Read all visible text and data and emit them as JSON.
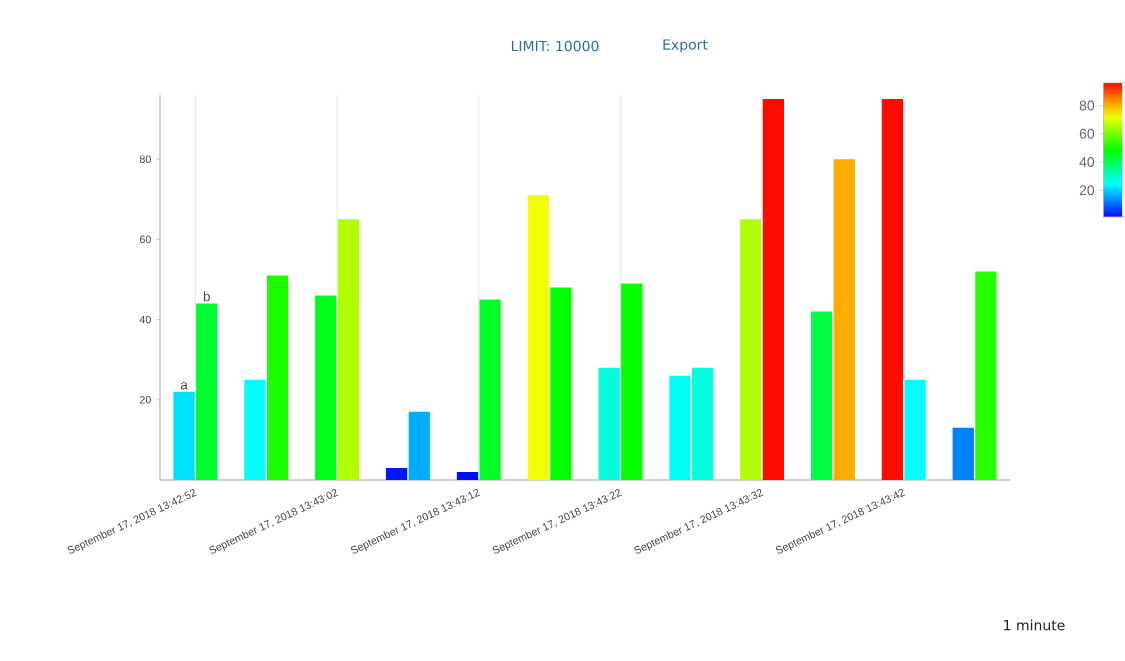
{
  "chart_data": {
    "type": "bar",
    "categories": [
      "September 17, 2018 13:42:52",
      null,
      "September 17, 2018 13:43:02",
      null,
      "September 17, 2018 13:43:12",
      null,
      "September 17, 2018 13:43:22",
      null,
      "September 17, 2018 13:43:32",
      null,
      "September 17, 2018 13:43:42",
      null
    ],
    "series": [
      {
        "name": "a",
        "values": [
          22,
          25,
          46,
          3,
          2,
          71,
          28,
          26,
          65,
          42,
          95,
          13
        ],
        "colors": [
          "#00e1ff",
          "#00fffc",
          "#00ff1b",
          "#0016ff",
          "#000bff",
          "#f1ff00",
          "#00ffdc",
          "#00fff2",
          "#b1ff00",
          "#00ff46",
          "#ff0b00",
          "#0081ff"
        ]
      },
      {
        "name": "b",
        "values": [
          44,
          51,
          65,
          17,
          45,
          48,
          49,
          28,
          95,
          80,
          25,
          52
        ],
        "colors": [
          "#00ff30",
          "#1bff00",
          "#b1ff00",
          "#00acff",
          "#00ff25",
          "#00ff05",
          "#05ff00",
          "#00ffdc",
          "#ff0b00",
          "#ffac00",
          "#00fffc",
          "#25ff00"
        ]
      }
    ],
    "ylim": [
      0,
      96
    ],
    "yticks": [
      20,
      40,
      60,
      80
    ],
    "grid": "x",
    "clim": [
      1,
      96
    ],
    "cticks": [
      20,
      40,
      60,
      80
    ],
    "annotations": [
      "LIMIT: 10000",
      "Export",
      "1 minute"
    ]
  }
}
